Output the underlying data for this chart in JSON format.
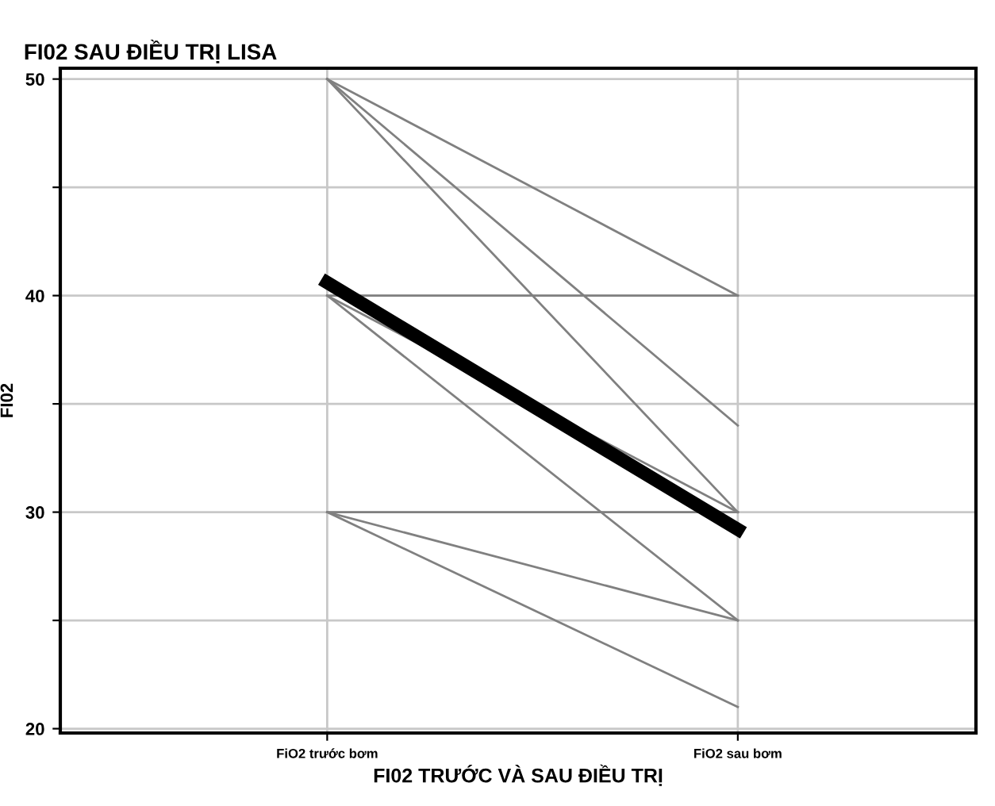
{
  "chart_data": {
    "type": "line",
    "title": "FI02 SAU ĐIỀU TRỊ LISA",
    "xlabel": "FI02 TRƯỚC VÀ SAU ĐIỀU TRỊ",
    "ylabel": "FI02",
    "categories": [
      "FiO2 trước bơm",
      "FiO2 sau bơm"
    ],
    "series": [
      {
        "color": "#808080",
        "values": [
          50,
          40
        ]
      },
      {
        "color": "#808080",
        "values": [
          50,
          34
        ]
      },
      {
        "color": "#808080",
        "values": [
          50,
          30
        ]
      },
      {
        "color": "#808080",
        "values": [
          40,
          40
        ]
      },
      {
        "color": "#808080",
        "values": [
          40,
          30
        ]
      },
      {
        "color": "#808080",
        "values": [
          40,
          25
        ]
      },
      {
        "color": "#808080",
        "values": [
          30,
          30
        ]
      },
      {
        "color": "#808080",
        "values": [
          30,
          25
        ]
      },
      {
        "color": "#808080",
        "values": [
          30,
          21
        ]
      },
      {
        "color": "#000000",
        "values": [
          40.6,
          29.2
        ]
      }
    ],
    "ylim": [
      19.8,
      50.5
    ],
    "yticks": [
      20,
      {
        "value": 25,
        "label": null
      },
      30,
      {
        "value": 35,
        "label": null
      },
      40,
      {
        "value": 45,
        "label": null
      },
      50
    ],
    "grid": true,
    "marker": "none",
    "line_style": "solid"
  }
}
